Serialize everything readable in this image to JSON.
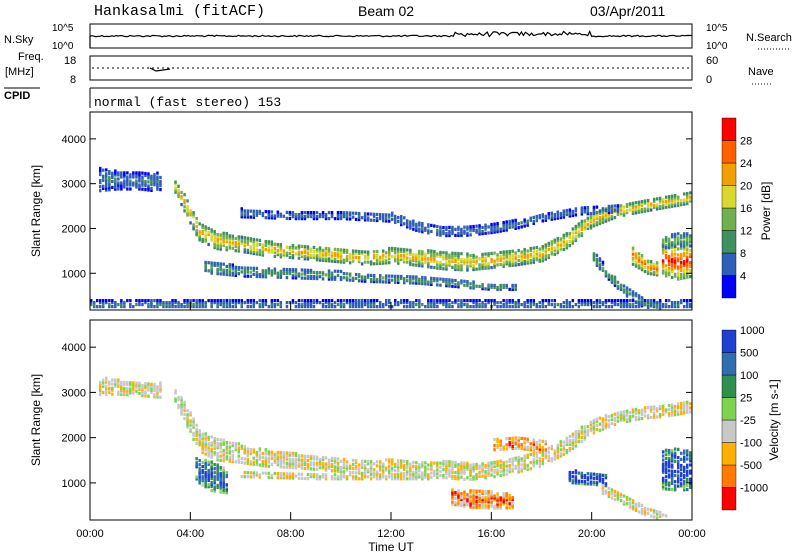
{
  "header": {
    "title": "Hankasalmi (fitACF)",
    "beam": "Beam 02",
    "date": "03/Apr/2011"
  },
  "small_panels": {
    "nsky_label": "N.Sky",
    "nsky_ticks": [
      "10^5",
      "10^0"
    ],
    "nsearch_label": "N.Search",
    "nsearch_ticks": [
      "10^5",
      "10^0"
    ],
    "freq_label_1": "Freq.",
    "freq_label_2": "[MHz]",
    "freq_ticks": [
      "18",
      "8"
    ],
    "nave_label": "Nave",
    "nave_ticks": [
      "60",
      "0"
    ],
    "cpid_label": "CPID",
    "cpid_text": "normal (fast stereo) 153"
  },
  "colors": {
    "power": [
      "#0000ff",
      "#2f5fb8",
      "#3f8f5f",
      "#6fb04f",
      "#d8d830",
      "#f0a000",
      "#ff6000",
      "#ff0000"
    ],
    "velocity": [
      "#ff0000",
      "#ff7a00",
      "#ffb000",
      "#c8c8c8",
      "#7fd34f",
      "#2f8f4f",
      "#2f6fb0",
      "#1f3fd0"
    ]
  },
  "chart_data": [
    {
      "type": "heatmap",
      "panel": "power",
      "ylabel": "Slant Range [km]",
      "ylim": [
        180,
        4600
      ],
      "y_ticks": [
        1000,
        2000,
        3000,
        4000
      ],
      "colorbar_label": "Power [dB]",
      "colorbar_ticks": [
        "4",
        "8",
        "12",
        "16",
        "20",
        "24",
        "28"
      ],
      "clim": [
        0,
        32
      ],
      "bands": [
        {
          "x": [
            [
              0.3,
              3100
            ],
            [
              1.0,
              3080
            ],
            [
              2.0,
              3060
            ],
            [
              2.8,
              3040
            ]
          ],
          "w": [
            260,
            200,
            180,
            220
          ],
          "v": 8
        },
        {
          "x": [
            [
              3.3,
              3000
            ],
            [
              3.8,
              2500
            ],
            [
              4.3,
              1950
            ],
            [
              5.0,
              1750
            ],
            [
              6.0,
              1650
            ],
            [
              7.0,
              1550
            ],
            [
              8.0,
              1500
            ],
            [
              9.0,
              1450
            ],
            [
              10.0,
              1400
            ],
            [
              11.0,
              1350
            ],
            [
              12.0,
              1400
            ],
            [
              13.0,
              1350
            ],
            [
              14.0,
              1300
            ],
            [
              15.0,
              1250
            ],
            [
              16.0,
              1300
            ],
            [
              17.0,
              1350
            ],
            [
              18.0,
              1450
            ],
            [
              19.0,
              1750
            ],
            [
              20.0,
              2200
            ],
            [
              21.0,
              2400
            ],
            [
              22.0,
              2500
            ],
            [
              23.0,
              2600
            ],
            [
              24.0,
              2700
            ]
          ],
          "w": [
            120,
            200,
            200,
            200,
            160,
            160,
            150,
            150,
            150,
            150,
            160,
            170,
            200,
            180,
            170,
            160,
            170,
            170,
            150,
            130,
            120,
            120,
            120
          ],
          "v": 22
        },
        {
          "x": [
            [
              6.0,
              2350
            ],
            [
              8.0,
              2300
            ],
            [
              10.0,
              2300
            ],
            [
              12.0,
              2250
            ],
            [
              13.0,
              2050
            ],
            [
              14.0,
              1950
            ],
            [
              15.0,
              1950
            ],
            [
              16.0,
              2000
            ],
            [
              17.0,
              2100
            ],
            [
              18.0,
              2250
            ],
            [
              19.5,
              2400
            ],
            [
              21.0,
              2450
            ]
          ],
          "w": [
            90,
            80,
            80,
            90,
            100,
            110,
            100,
            90,
            90,
            80,
            80,
            80
          ],
          "v": 8
        },
        {
          "x": [
            [
              4.5,
              1150
            ],
            [
              6.0,
              1050
            ],
            [
              8.0,
              1000
            ],
            [
              10.0,
              950
            ],
            [
              11.0,
              900
            ],
            [
              13.0,
              850
            ],
            [
              15.0,
              750
            ],
            [
              16.0,
              700
            ],
            [
              17.0,
              700
            ]
          ],
          "w": [
            130,
            110,
            100,
            90,
            80,
            70,
            70,
            60,
            60
          ],
          "v": 12
        },
        {
          "x": [
            [
              20.0,
              1400
            ],
            [
              20.6,
              1000
            ],
            [
              21.2,
              650
            ],
            [
              22.0,
              350
            ],
            [
              22.8,
              250
            ]
          ],
          "w": [
            120,
            110,
            100,
            90,
            80
          ],
          "v": 12
        },
        {
          "x": [
            [
              21.6,
              1400
            ],
            [
              22.2,
              1150
            ],
            [
              22.6,
              1100
            ]
          ],
          "w": [
            200,
            150,
            140
          ],
          "v": 26
        },
        {
          "x": [
            [
              22.8,
              1300
            ],
            [
              23.4,
              1250
            ],
            [
              24.0,
              1300
            ]
          ],
          "w": [
            340,
            380,
            360
          ],
          "v": 30
        },
        {
          "x": [
            [
              22.8,
              1700
            ],
            [
              23.4,
              1750
            ],
            [
              24.0,
              1750
            ]
          ],
          "w": [
            140,
            140,
            140
          ],
          "v": 14
        },
        {
          "x": [
            [
              0.0,
              300
            ],
            [
              4.0,
              300
            ],
            [
              8.0,
              300
            ],
            [
              12.0,
              300
            ],
            [
              16.0,
              300
            ],
            [
              20.0,
              300
            ],
            [
              24.0,
              300
            ]
          ],
          "w": [
            90,
            90,
            90,
            90,
            90,
            90,
            90
          ],
          "v": 8
        }
      ]
    },
    {
      "type": "heatmap",
      "panel": "velocity",
      "ylabel": "Slant Range [km]",
      "xlabel": "Time UT",
      "ylim": [
        180,
        4600
      ],
      "y_ticks": [
        1000,
        2000,
        3000,
        4000
      ],
      "x_ticks": [
        "00:00",
        "04:00",
        "08:00",
        "12:00",
        "16:00",
        "20:00",
        "00:00"
      ],
      "xlim": [
        0,
        24
      ],
      "colorbar_label": "Velocity [m s-1]",
      "colorbar_ticks": [
        "-1000",
        "-500",
        "-100",
        "-25",
        "25",
        "100",
        "500",
        "1000"
      ],
      "bands": [
        {
          "x": [
            [
              0.3,
              3150
            ],
            [
              1.0,
              3120
            ],
            [
              2.0,
              3080
            ],
            [
              2.8,
              3050
            ]
          ],
          "w": [
            200,
            160,
            150,
            160
          ],
          "v": 0
        },
        {
          "x": [
            [
              3.3,
              3000
            ],
            [
              3.8,
              2500
            ],
            [
              4.3,
              1950
            ],
            [
              5.0,
              1750
            ],
            [
              6.0,
              1650
            ],
            [
              7.0,
              1550
            ],
            [
              8.0,
              1500
            ],
            [
              9.0,
              1450
            ],
            [
              10.0,
              1400
            ],
            [
              11.0,
              1350
            ],
            [
              12.0,
              1350
            ],
            [
              13.0,
              1300
            ],
            [
              14.0,
              1300
            ],
            [
              15.0,
              1250
            ],
            [
              16.0,
              1300
            ],
            [
              17.0,
              1400
            ],
            [
              18.0,
              1550
            ],
            [
              19.0,
              1850
            ],
            [
              20.0,
              2250
            ],
            [
              21.0,
              2450
            ],
            [
              22.0,
              2550
            ],
            [
              23.0,
              2600
            ],
            [
              24.0,
              2700
            ]
          ],
          "w": [
            120,
            220,
            240,
            240,
            200,
            180,
            160,
            150,
            150,
            150,
            160,
            170,
            180,
            180,
            170,
            160,
            170,
            170,
            150,
            130,
            120,
            120,
            120
          ],
          "v": 0
        },
        {
          "x": [
            [
              4.2,
              1300
            ],
            [
              4.8,
              1150
            ],
            [
              5.5,
              1050
            ]
          ],
          "w": [
            260,
            320,
            280
          ],
          "v": 4
        },
        {
          "x": [
            [
              6.0,
              1200
            ],
            [
              9.0,
              1150
            ],
            [
              12.0,
              1150
            ],
            [
              13.5,
              1150
            ]
          ],
          "w": [
            60,
            60,
            60,
            60
          ],
          "v": 0
        },
        {
          "x": [
            [
              14.3,
              700
            ],
            [
              15.0,
              650
            ],
            [
              16.0,
              620
            ],
            [
              16.8,
              600
            ]
          ],
          "w": [
            160,
            180,
            180,
            150
          ],
          "v": -2
        },
        {
          "x": [
            [
              16.0,
              1850
            ],
            [
              17.0,
              1900
            ],
            [
              18.2,
              1800
            ]
          ],
          "w": [
            120,
            130,
            120
          ],
          "v": -2
        },
        {
          "x": [
            [
              19.0,
              1150
            ],
            [
              20.0,
              1100
            ],
            [
              20.6,
              1050
            ]
          ],
          "w": [
            140,
            130,
            120
          ],
          "v": 6
        },
        {
          "x": [
            [
              20.3,
              900
            ],
            [
              21.0,
              700
            ],
            [
              22.0,
              400
            ],
            [
              23.0,
              250
            ]
          ],
          "w": [
            110,
            100,
            90,
            80
          ],
          "v": 0
        },
        {
          "x": [
            [
              22.7,
              1300
            ],
            [
              23.4,
              1300
            ],
            [
              24.0,
              1300
            ]
          ],
          "w": [
            420,
            460,
            440
          ],
          "v": 5
        }
      ]
    }
  ]
}
